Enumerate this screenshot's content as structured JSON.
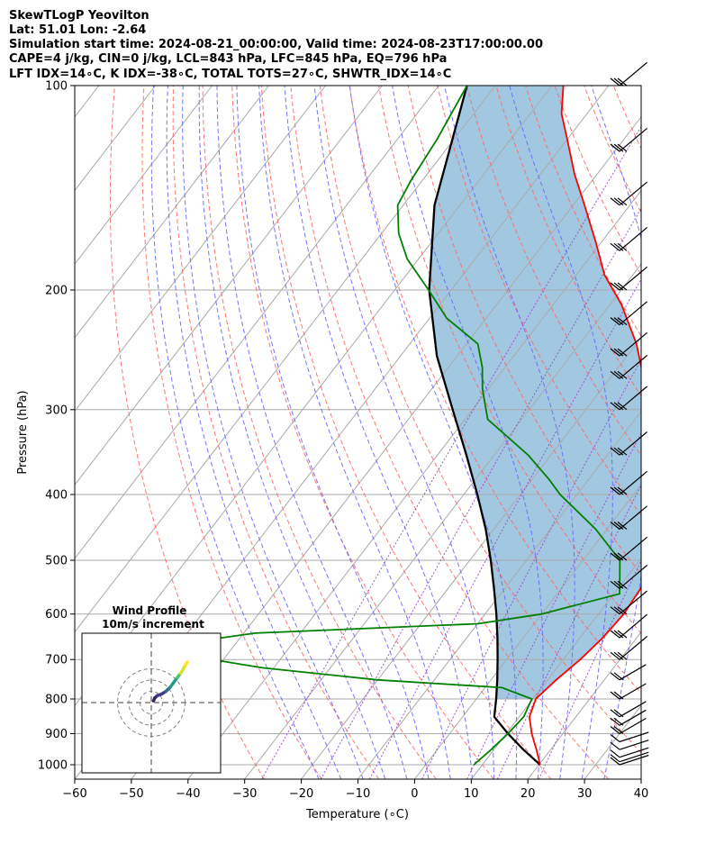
{
  "title_lines": [
    "SkewTLogP Yeovilton",
    "Lat: 51.01   Lon: -2.64",
    "Simulation start time: 2024-08-21_00:00:00, Valid time: 2024-08-23T17:00:00.00",
    "CAPE=4 j/kg, CIN=0 j/kg, LCL=843 hPa, LFC=845 hPa, EQ=796 hPa",
    "LFT IDX=14∘C, K IDX=-38∘C, TOTAL TOTS=27∘C, SHWTR_IDX=14∘C"
  ],
  "chart_data": [
    {
      "type": "line",
      "subtype": "skew-t log-p",
      "xlabel": "Temperature (∘C)",
      "ylabel": "Pressure (hPa)",
      "xlim": [
        -60,
        40
      ],
      "ylim": [
        1050,
        100
      ],
      "y_scale": "log",
      "x_ticks": [
        -60,
        -50,
        -40,
        -30,
        -20,
        -10,
        0,
        10,
        20,
        30,
        40
      ],
      "x_tick_labels": [
        "−60",
        "−50",
        "−40",
        "−30",
        "−20",
        "−10",
        "0",
        "10",
        "20",
        "30",
        "40"
      ],
      "y_ticks": [
        1000,
        900,
        800,
        700,
        600,
        500,
        400,
        300,
        200,
        100
      ],
      "y_tick_labels": [
        "1000",
        "900",
        "800",
        "700",
        "600",
        "500",
        "400",
        "300",
        "200",
        "100"
      ],
      "grid": true,
      "colors": {
        "temperature": "#ff0000",
        "dewpoint": "#008000",
        "parcel": "#000000",
        "cape_fill": "#a2c7e0",
        "dry_adiabats": "#ff6666",
        "moist_adiabats": "#6666ff",
        "mixing_ratio": "#9944cc",
        "isotherms": "#aaaaaa"
      },
      "series": [
        {
          "role": "temperature",
          "points": [
            [
              1000,
              20.2
            ],
            [
              950,
              17.5
            ],
            [
              900,
              14.5
            ],
            [
              850,
              11.8
            ],
            [
              800,
              10.5
            ],
            [
              750,
              11.5
            ],
            [
              700,
              13
            ],
            [
              650,
              14
            ],
            [
              600,
              14.5
            ],
            [
              550,
              14
            ],
            [
              500,
              12
            ],
            [
              450,
              7
            ],
            [
              400,
              2.5
            ],
            [
              350,
              -3
            ],
            [
              300,
              -9
            ],
            [
              270,
              -14
            ],
            [
              240,
              -20
            ],
            [
              210,
              -28
            ],
            [
              190,
              -35
            ],
            [
              170,
              -41
            ],
            [
              150,
              -48
            ],
            [
              135,
              -54
            ],
            [
              120,
              -60
            ],
            [
              110,
              -64.5
            ],
            [
              100,
              -68
            ]
          ]
        },
        {
          "role": "dewpoint",
          "points": [
            [
              1000,
              8.5
            ],
            [
              950,
              9.5
            ],
            [
              900,
              10.3
            ],
            [
              850,
              10.8
            ],
            [
              800,
              9.8
            ],
            [
              770,
              3
            ],
            [
              750,
              -20
            ],
            [
              720,
              -42
            ],
            [
              700,
              -52
            ],
            [
              680,
              -68
            ],
            [
              640,
              -48
            ],
            [
              620,
              -10
            ],
            [
              600,
              0
            ],
            [
              560,
              11
            ],
            [
              500,
              6.5
            ],
            [
              450,
              -2
            ],
            [
              400,
              -13
            ],
            [
              380,
              -17
            ],
            [
              350,
              -24
            ],
            [
              310,
              -36
            ],
            [
              280,
              -41
            ],
            [
              260,
              -44
            ],
            [
              240,
              -48
            ],
            [
              220,
              -57
            ],
            [
              200,
              -64
            ],
            [
              180,
              -72
            ],
            [
              165,
              -77
            ],
            [
              150,
              -81
            ],
            [
              138,
              -82
            ],
            [
              120,
              -83
            ],
            [
              100,
              -85
            ]
          ]
        },
        {
          "role": "parcel",
          "points": [
            [
              1000,
              20.2
            ],
            [
              950,
              15.2
            ],
            [
              900,
              10.3
            ],
            [
              850,
              5.6
            ],
            [
              800,
              3.5
            ],
            [
              750,
              1.1
            ],
            [
              700,
              -1.6
            ],
            [
              650,
              -4.6
            ],
            [
              600,
              -8
            ],
            [
              550,
              -11.9
            ],
            [
              500,
              -16.3
            ],
            [
              450,
              -21.4
            ],
            [
              400,
              -27.6
            ],
            [
              350,
              -34.9
            ],
            [
              300,
              -43.5
            ],
            [
              250,
              -53.6
            ],
            [
              200,
              -63.9
            ],
            [
              150,
              -74.5
            ],
            [
              100,
              -85
            ]
          ]
        }
      ],
      "wind_barbs": {
        "pressures": [
          1000,
          990,
          975,
          950,
          925,
          900,
          875,
          850,
          800,
          750,
          700,
          650,
          600,
          550,
          500,
          450,
          400,
          350,
          300,
          270,
          250,
          225,
          200,
          175,
          150,
          125,
          100
        ]
      }
    },
    {
      "type": "line",
      "subtype": "hodograph",
      "title": "Wind Profile",
      "subtitle": "10m/s increment",
      "rings": [
        10,
        20,
        30
      ],
      "points": [
        [
          2,
          1.5
        ],
        [
          3,
          4
        ],
        [
          5,
          6
        ],
        [
          9,
          7.5
        ],
        [
          13,
          10
        ],
        [
          17,
          14
        ],
        [
          20,
          18
        ],
        [
          23,
          22
        ],
        [
          26,
          26
        ],
        [
          28,
          29
        ],
        [
          30,
          33
        ],
        [
          32,
          36
        ]
      ],
      "colormap": [
        "#3a1f66",
        "#403a8a",
        "#2f6d8e",
        "#1f9a8a",
        "#4cc26c",
        "#d9e02a",
        "#fde725"
      ]
    }
  ]
}
